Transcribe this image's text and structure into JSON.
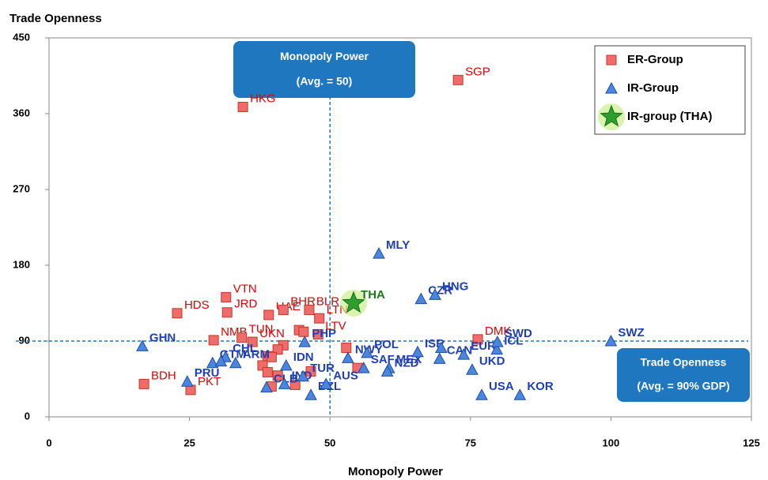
{
  "chart_data": {
    "type": "scatter",
    "y_axis_title": "Trade Openness",
    "x_axis_title": "Monopoly Power",
    "xlim": [
      0,
      125
    ],
    "xticks": [
      0,
      25,
      50,
      75,
      100,
      125
    ],
    "ylim": [
      0,
      450
    ],
    "yticks": [
      0,
      90,
      180,
      270,
      360,
      450
    ],
    "reference_lines": {
      "x": 50,
      "y": 90
    },
    "annotations": {
      "x_line": [
        "Monopoly Power",
        "(Avg. = 50)"
      ],
      "y_line": [
        "Trade Openness",
        "(Avg. = 90% GDP)"
      ]
    },
    "legend": "top-right",
    "series": [
      {
        "name": "ER-Group",
        "marker": "square",
        "color": "#f26b6b",
        "label_color": "#e00000",
        "x": [
          72.8,
          34.5,
          16.9,
          25.2,
          22.8,
          31.5,
          31.7,
          39.1,
          41.7,
          46.3,
          48.1,
          47.9,
          29.3,
          34.3,
          36.2,
          76.3,
          44.5,
          45.3,
          41.7,
          40.7,
          38.9,
          39.6,
          38.0,
          38.9,
          40.7,
          39.6,
          43.8,
          46.6,
          52.9,
          54.9
        ],
        "y": [
          400,
          368,
          39,
          32,
          123,
          142,
          124,
          121,
          127,
          127,
          117,
          98,
          91,
          94,
          89,
          92,
          103,
          101,
          85,
          80,
          72,
          71,
          61,
          53,
          49,
          36,
          38,
          54,
          82,
          58
        ],
        "labels": [
          "SGP",
          "HKG",
          "BDH",
          "PKT",
          "HDS",
          "VTN",
          "JRD",
          "UAE",
          "BHR",
          "BLR",
          "LTN",
          "LTV",
          "NMB",
          "TUN",
          "UKN",
          "DMK",
          null,
          null,
          null,
          null,
          null,
          null,
          null,
          null,
          null,
          null,
          null,
          null,
          null,
          null
        ]
      },
      {
        "name": "IR-Group",
        "marker": "triangle",
        "color": "#4a86e0",
        "label_color": "#1f3fb5",
        "x": [
          58.7,
          66.2,
          68.7,
          100,
          16.6,
          29.1,
          24.6,
          31.4,
          30.6,
          33.2,
          38.7,
          42.2,
          41.9,
          45.2,
          46.6,
          49.3,
          45.5,
          53.2,
          56.6,
          56.0,
          60.5,
          60.2,
          65.6,
          69.5,
          69.8,
          73.8,
          75.3,
          79.7,
          79.8,
          77.0,
          83.8
        ],
        "y": [
          194,
          140,
          145,
          90,
          84,
          64,
          42,
          71,
          66,
          64,
          35,
          61,
          39,
          48,
          26,
          39,
          89,
          70,
          76,
          58,
          58,
          54,
          77,
          69,
          82,
          74,
          56,
          80,
          89,
          26,
          26
        ],
        "labels": [
          "MLY",
          "CZR",
          "HNG",
          "SWZ",
          "GHN",
          "GTM",
          "PRU",
          "CHL",
          null,
          "ARM",
          "CLB",
          "IDN",
          "IND",
          "TUR",
          "BZL",
          "AUS",
          "PHP",
          "NWY",
          "POL",
          "SAF",
          "MEX",
          "NZD",
          "ISR",
          "CAN",
          null,
          "EUR",
          "UKD",
          "ICL",
          "SWD",
          "USA",
          "KOR"
        ]
      },
      {
        "name": "IR-group (THA)",
        "marker": "star",
        "color": "#2e9e2e",
        "label_color": "#1a7a1a",
        "x": [
          54.2
        ],
        "y": [
          135
        ],
        "labels": [
          "THA"
        ]
      }
    ]
  }
}
